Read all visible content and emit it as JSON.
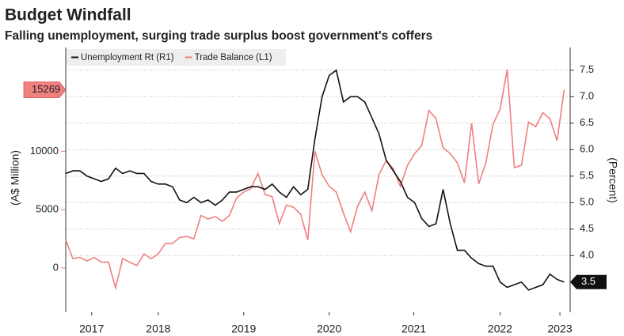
{
  "chart_data": {
    "type": "line",
    "title": "Budget Windfall",
    "subtitle": "Falling unemployment, surging trade surplus boost government's coffers",
    "ylabel": "(A$ Million)",
    "y2label": "(Percent)",
    "x": [
      2017.417,
      2017.5,
      2017.583,
      2017.667,
      2017.75,
      2017.833,
      2017.917,
      2018.0,
      2018.083,
      2018.167,
      2018.25,
      2018.333,
      2018.417,
      2018.5,
      2018.583,
      2018.667,
      2018.75,
      2018.833,
      2018.917,
      2019.0,
      2019.083,
      2019.167,
      2019.25,
      2019.333,
      2019.417,
      2019.5,
      2019.583,
      2019.667,
      2019.75,
      2019.833,
      2019.917,
      2020.0,
      2020.083,
      2020.167,
      2020.25,
      2020.333,
      2020.417,
      2020.5,
      2020.583,
      2020.667,
      2020.75,
      2020.833,
      2020.917,
      2021.0,
      2021.083,
      2021.167,
      2021.25,
      2021.333,
      2021.417,
      2021.5,
      2021.583,
      2021.667,
      2021.75,
      2021.833,
      2021.917,
      2022.0,
      2022.083,
      2022.167,
      2022.25,
      2022.333,
      2022.417,
      2022.5,
      2022.583,
      2022.667,
      2022.75,
      2022.833,
      2022.917,
      2023.0,
      2023.083,
      2023.167,
      2023.25
    ],
    "series": [
      {
        "name": "Unemployment Rt (R1)",
        "color": "#111111",
        "axis": "y2",
        "values": [
          5.55,
          5.6,
          5.6,
          5.5,
          5.45,
          5.4,
          5.45,
          5.65,
          5.55,
          5.6,
          5.55,
          5.55,
          5.4,
          5.35,
          5.35,
          5.3,
          5.05,
          5.0,
          5.1,
          5.0,
          5.05,
          4.95,
          5.05,
          5.2,
          5.2,
          5.25,
          5.3,
          5.3,
          5.25,
          5.35,
          5.2,
          5.1,
          5.3,
          5.15,
          5.25,
          6.2,
          7.0,
          7.4,
          7.5,
          6.9,
          7.0,
          7.0,
          6.9,
          6.6,
          6.3,
          5.8,
          5.6,
          5.4,
          5.1,
          5.0,
          4.7,
          4.55,
          4.6,
          5.25,
          4.6,
          4.1,
          4.1,
          3.95,
          3.85,
          3.8,
          3.8,
          3.5,
          3.4,
          3.45,
          3.5,
          3.35,
          3.4,
          3.45,
          3.65,
          3.55,
          3.5
        ]
      },
      {
        "name": "Trade Balance (L1)",
        "color": "#f07f7f",
        "values": [
          2400,
          800,
          900,
          600,
          900,
          500,
          500,
          -1700,
          800,
          500,
          200,
          1200,
          800,
          1200,
          2100,
          2100,
          2600,
          2700,
          2500,
          4500,
          4200,
          4400,
          4000,
          4500,
          6000,
          6500,
          6800,
          8100,
          6300,
          6100,
          3800,
          5400,
          5200,
          4600,
          2400,
          10000,
          8000,
          7000,
          6500,
          4700,
          3100,
          5300,
          6500,
          4900,
          8000,
          9200,
          8500,
          7000,
          8800,
          9800,
          10500,
          13500,
          12800,
          10300,
          9800,
          9000,
          7300,
          12400,
          7200,
          9000,
          12300,
          13600,
          17000,
          8600,
          8800,
          12500,
          12100,
          13300,
          12800,
          10900,
          15269
        ]
      }
    ],
    "xlim": [
      2017.417,
      2023.32
    ],
    "xticks": [
      {
        "value": 2017.72,
        "label": "2017"
      },
      {
        "value": 2018.5,
        "label": "2018"
      },
      {
        "value": 2019.5,
        "label": "2019"
      },
      {
        "value": 2020.5,
        "label": "2020"
      },
      {
        "value": 2021.49,
        "label": "2021"
      },
      {
        "value": 2022.5,
        "label": "2022"
      },
      {
        "value": 2023.2,
        "label": "2023"
      }
    ],
    "ylim": [
      -3800,
      18900
    ],
    "yticks": [
      0,
      5000,
      10000
    ],
    "y2lim": [
      2.93,
      7.93
    ],
    "y2ticks": [
      {
        "value": 4.0,
        "label": "4.0"
      },
      {
        "value": 4.5,
        "label": "4.5"
      },
      {
        "value": 5.0,
        "label": "5.0"
      },
      {
        "value": 5.5,
        "label": "5.5"
      },
      {
        "value": 6.0,
        "label": "6.0"
      },
      {
        "value": 6.5,
        "label": "6.5"
      },
      {
        "value": 7.0,
        "label": "7.0"
      },
      {
        "value": 7.5,
        "label": "7.5"
      }
    ],
    "grid": true
  }
}
